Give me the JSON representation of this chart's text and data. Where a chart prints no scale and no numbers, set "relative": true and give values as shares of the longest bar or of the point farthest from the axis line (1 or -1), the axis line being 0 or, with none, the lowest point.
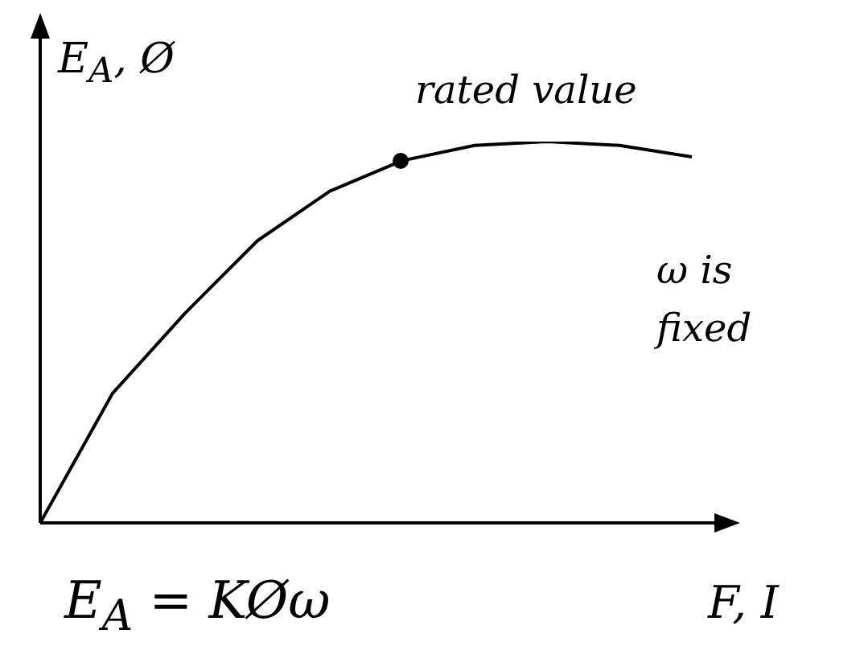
{
  "chart_data": {
    "type": "line",
    "relative": true,
    "ylabel": "E$_{A}$, Ø",
    "xlabel": "F, I",
    "categories": [
      null,
      null,
      null,
      null,
      null,
      null,
      null,
      null,
      null,
      null
    ],
    "series": [
      {
        "type": "line",
        "color": "#000000",
        "marker": "none",
        "values": [
          0,
          0.34,
          0.55,
          0.74,
          0.87,
          0.95,
          0.99,
          1,
          0.99,
          0.96
        ]
      }
    ],
    "annotations": [
      "rated value",
      "ω is fixed",
      "E$_{A}$ = KØω"
    ],
    "grid": false,
    "legend": false
  }
}
